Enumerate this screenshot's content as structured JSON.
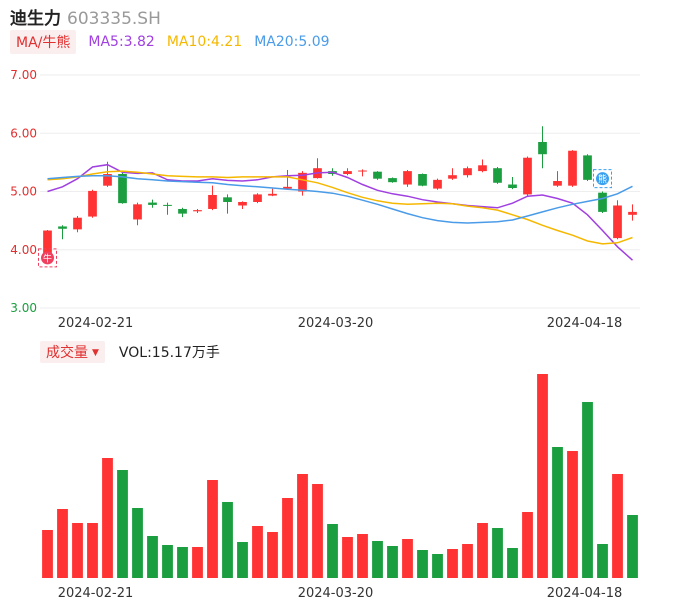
{
  "header": {
    "name": "迪生力",
    "code": "603335.SH"
  },
  "ma_legend": {
    "tag": "MA/牛熊",
    "items": [
      {
        "label": "MA5:3.82",
        "color": "#a040e0"
      },
      {
        "label": "MA10:4.21",
        "color": "#f5b800"
      },
      {
        "label": "MA20:5.09",
        "color": "#4a9be8"
      }
    ]
  },
  "volume_legend": {
    "tag": "成交量",
    "caret": "▼",
    "label": "VOL:15.17万手"
  },
  "colors": {
    "up": "#ff3333",
    "down": "#1a9e3f"
  },
  "icons": {
    "bear_marker": "牛",
    "bull_marker": "熊"
  },
  "chart_data": [
    {
      "type": "candlestick",
      "ylim": [
        3.0,
        7.0
      ],
      "yticks": [
        "7.00",
        "6.00",
        "5.00",
        "4.00",
        "3.00"
      ],
      "xtick_labels": [
        "2024-02-21",
        "2024-03-20",
        "2024-04-18"
      ],
      "candles": [
        {
          "o": 3.87,
          "c": 4.33,
          "h": 4.34,
          "l": 3.84
        },
        {
          "o": 4.4,
          "c": 4.36,
          "h": 4.42,
          "l": 4.18
        },
        {
          "o": 4.35,
          "c": 4.55,
          "h": 4.58,
          "l": 4.3
        },
        {
          "o": 4.57,
          "c": 5.01,
          "h": 5.03,
          "l": 4.55
        },
        {
          "o": 5.1,
          "c": 5.3,
          "h": 5.51,
          "l": 5.08
        },
        {
          "o": 5.3,
          "c": 4.8,
          "h": 5.32,
          "l": 4.79
        },
        {
          "o": 4.52,
          "c": 4.78,
          "h": 4.81,
          "l": 4.42
        },
        {
          "o": 4.81,
          "c": 4.77,
          "h": 4.86,
          "l": 4.72
        },
        {
          "o": 4.77,
          "c": 4.76,
          "h": 4.81,
          "l": 4.6
        },
        {
          "o": 4.7,
          "c": 4.62,
          "h": 4.72,
          "l": 4.56
        },
        {
          "o": 4.66,
          "c": 4.68,
          "h": 4.7,
          "l": 4.63
        },
        {
          "o": 4.7,
          "c": 4.94,
          "h": 5.1,
          "l": 4.68
        },
        {
          "o": 4.9,
          "c": 4.82,
          "h": 4.95,
          "l": 4.62
        },
        {
          "o": 4.76,
          "c": 4.82,
          "h": 4.83,
          "l": 4.7
        },
        {
          "o": 4.82,
          "c": 4.95,
          "h": 4.97,
          "l": 4.8
        },
        {
          "o": 4.93,
          "c": 4.96,
          "h": 5.05,
          "l": 4.92
        },
        {
          "o": 5.05,
          "c": 5.08,
          "h": 5.37,
          "l": 5.04
        },
        {
          "o": 5.0,
          "c": 5.32,
          "h": 5.35,
          "l": 4.93
        },
        {
          "o": 5.23,
          "c": 5.4,
          "h": 5.57,
          "l": 5.22
        },
        {
          "o": 5.35,
          "c": 5.3,
          "h": 5.4,
          "l": 5.27
        },
        {
          "o": 5.3,
          "c": 5.35,
          "h": 5.4,
          "l": 5.28
        },
        {
          "o": 5.35,
          "c": 5.36,
          "h": 5.38,
          "l": 5.26
        },
        {
          "o": 5.34,
          "c": 5.22,
          "h": 5.35,
          "l": 5.2
        },
        {
          "o": 5.23,
          "c": 5.16,
          "h": 5.24,
          "l": 5.15
        },
        {
          "o": 5.12,
          "c": 5.35,
          "h": 5.37,
          "l": 5.08
        },
        {
          "o": 5.3,
          "c": 5.1,
          "h": 5.31,
          "l": 5.09
        },
        {
          "o": 5.05,
          "c": 5.2,
          "h": 5.22,
          "l": 5.03
        },
        {
          "o": 5.22,
          "c": 5.28,
          "h": 5.4,
          "l": 5.2
        },
        {
          "o": 5.28,
          "c": 5.4,
          "h": 5.43,
          "l": 5.24
        },
        {
          "o": 5.35,
          "c": 5.45,
          "h": 5.55,
          "l": 5.33
        },
        {
          "o": 5.4,
          "c": 5.15,
          "h": 5.42,
          "l": 5.13
        },
        {
          "o": 5.12,
          "c": 5.06,
          "h": 5.25,
          "l": 5.04
        },
        {
          "o": 4.95,
          "c": 5.58,
          "h": 5.6,
          "l": 4.93
        },
        {
          "o": 5.85,
          "c": 5.64,
          "h": 6.12,
          "l": 5.4
        },
        {
          "o": 5.1,
          "c": 5.18,
          "h": 5.35,
          "l": 5.08
        },
        {
          "o": 5.1,
          "c": 5.7,
          "h": 5.71,
          "l": 5.08
        },
        {
          "o": 5.62,
          "c": 5.2,
          "h": 5.64,
          "l": 5.18
        },
        {
          "o": 4.98,
          "c": 4.65,
          "h": 5.0,
          "l": 4.63
        },
        {
          "o": 4.2,
          "c": 4.76,
          "h": 4.85,
          "l": 4.18
        },
        {
          "o": 4.6,
          "c": 4.65,
          "h": 4.78,
          "l": 4.5
        }
      ],
      "ma5": [
        5.0,
        5.08,
        5.22,
        5.42,
        5.46,
        5.33,
        5.31,
        5.32,
        5.2,
        5.18,
        5.18,
        5.22,
        5.19,
        5.18,
        5.2,
        5.25,
        5.27,
        5.28,
        5.32,
        5.33,
        5.24,
        5.12,
        5.02,
        4.96,
        4.92,
        4.86,
        4.82,
        4.79,
        4.76,
        4.74,
        4.72,
        4.8,
        4.92,
        4.94,
        4.88,
        4.8,
        4.6,
        4.33,
        4.05,
        3.82
      ],
      "ma10": [
        5.2,
        5.22,
        5.25,
        5.3,
        5.34,
        5.35,
        5.33,
        5.3,
        5.27,
        5.26,
        5.25,
        5.25,
        5.24,
        5.25,
        5.25,
        5.25,
        5.25,
        5.2,
        5.15,
        5.07,
        4.98,
        4.9,
        4.84,
        4.8,
        4.78,
        4.79,
        4.8,
        4.79,
        4.75,
        4.72,
        4.68,
        4.6,
        4.52,
        4.42,
        4.33,
        4.25,
        4.15,
        4.1,
        4.12,
        4.21
      ],
      "ma20": [
        5.22,
        5.24,
        5.26,
        5.27,
        5.27,
        5.25,
        5.22,
        5.2,
        5.18,
        5.17,
        5.16,
        5.15,
        5.12,
        5.1,
        5.08,
        5.06,
        5.04,
        5.02,
        5.0,
        4.97,
        4.92,
        4.85,
        4.78,
        4.7,
        4.62,
        4.55,
        4.5,
        4.47,
        4.46,
        4.47,
        4.48,
        4.51,
        4.58,
        4.65,
        4.72,
        4.78,
        4.83,
        4.88,
        4.96,
        5.09
      ]
    },
    {
      "type": "bar",
      "name": "volume",
      "values": [
        4.8,
        6.9,
        5.5,
        5.5,
        12.0,
        10.8,
        7.0,
        4.2,
        3.3,
        3.1,
        3.1,
        9.8,
        7.6,
        3.6,
        5.2,
        4.6,
        8.0,
        10.4,
        9.4,
        5.4,
        4.1,
        4.4,
        3.7,
        3.2,
        3.9,
        2.8,
        2.4,
        2.9,
        3.4,
        5.5,
        5.0,
        3.0,
        6.6,
        20.4,
        13.1,
        12.7,
        17.6,
        3.4,
        10.4,
        6.3
      ],
      "up": [
        true,
        true,
        true,
        true,
        true,
        false,
        false,
        false,
        false,
        false,
        true,
        true,
        false,
        false,
        true,
        true,
        true,
        true,
        true,
        false,
        true,
        true,
        false,
        false,
        true,
        false,
        false,
        true,
        true,
        true,
        false,
        false,
        true,
        true,
        false,
        true,
        false,
        false,
        true,
        false
      ],
      "xtick_labels": [
        "2024-02-21",
        "2024-03-20",
        "2024-04-18"
      ]
    }
  ]
}
